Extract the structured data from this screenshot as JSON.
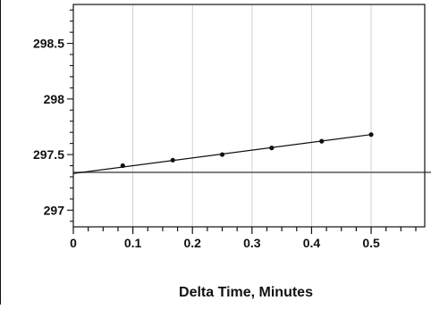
{
  "chart_data": {
    "type": "scatter",
    "title": "",
    "xlabel": "Delta Time, Minutes",
    "ylabel": "",
    "xlim": [
      0,
      0.59
    ],
    "ylim": [
      296.85,
      298.85
    ],
    "x_ticks": [
      {
        "value": 0,
        "label": "0"
      },
      {
        "value": 0.1,
        "label": "0.1"
      },
      {
        "value": 0.2,
        "label": "0.2"
      },
      {
        "value": 0.3,
        "label": "0.3"
      },
      {
        "value": 0.4,
        "label": "0.4"
      },
      {
        "value": 0.5,
        "label": "0.5"
      }
    ],
    "y_ticks": [
      {
        "value": 297,
        "label": "297"
      },
      {
        "value": 297.5,
        "label": "297.5"
      },
      {
        "value": 298,
        "label": "298"
      },
      {
        "value": 298.5,
        "label": "298.5"
      }
    ],
    "grid": "vertical",
    "points": [
      {
        "x": 0.083,
        "y": 297.4
      },
      {
        "x": 0.167,
        "y": 297.45
      },
      {
        "x": 0.25,
        "y": 297.5
      },
      {
        "x": 0.333,
        "y": 297.56
      },
      {
        "x": 0.417,
        "y": 297.62
      },
      {
        "x": 0.5,
        "y": 297.68
      }
    ],
    "fit_line": {
      "x": [
        0,
        0.5
      ],
      "y": [
        297.33,
        297.68
      ]
    },
    "reference_line": {
      "y": 297.34
    },
    "colors": {
      "points": "#111111",
      "fit_line": "#111111",
      "reference_line": "#555555",
      "grid": "#d0d0d0"
    }
  }
}
